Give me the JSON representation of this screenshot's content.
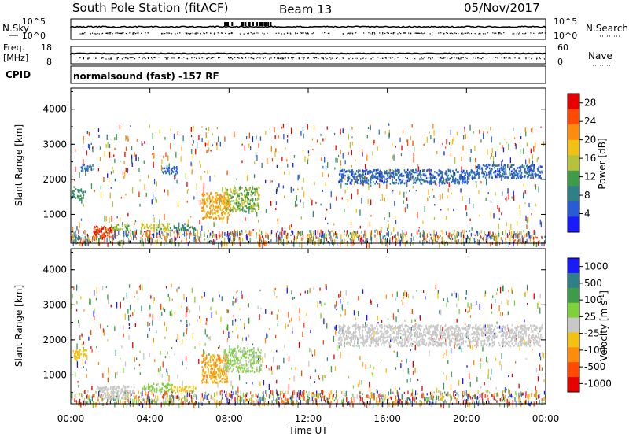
{
  "header": {
    "station": "South Pole Station (fitACF)",
    "beam": "Beam 13",
    "date": "05/Nov/2017"
  },
  "strip_labels": {
    "nsky": "N.Sky",
    "nsearch": "N.Search",
    "freq_top": "Freq.",
    "freq_unit": "[MHz]",
    "nave": "Nave",
    "cpid": "CPID",
    "cpid_value": "normalsound (fast) -157 RF"
  },
  "noise_axis": {
    "left_ticks": [
      "10^5",
      "10^0"
    ],
    "right_ticks": [
      "10^5",
      "10^0"
    ]
  },
  "freq_axis": {
    "left_ticks": [
      "18",
      "8"
    ],
    "right_ticks": [
      "60",
      "0"
    ]
  },
  "chart_data": [
    {
      "type": "heatmap",
      "title": "",
      "xlabel": "Time UT",
      "ylabel": "Slant Range [km]",
      "x_ticks": [
        "00:00",
        "04:00",
        "08:00",
        "12:00",
        "16:00",
        "20:00",
        "00:00"
      ],
      "xlim_hours": [
        0,
        24
      ],
      "ylim": [
        180,
        4600
      ],
      "y_ticks": [
        1000,
        2000,
        3000,
        4000
      ],
      "colorbar": {
        "label": "Power [dB]",
        "ticks": [
          4,
          8,
          12,
          16,
          20,
          24,
          28
        ],
        "range": [
          0,
          30
        ],
        "colors": [
          "#1a1aff",
          "#2a5bd6",
          "#2f7f86",
          "#3f9a4a",
          "#b6c23a",
          "#f4c012",
          "#ff8c0a",
          "#ff4a00",
          "#e80000"
        ]
      },
      "regions": [
        {
          "t0": 0.0,
          "t1": 0.7,
          "r0": 1450,
          "r1": 1750,
          "level": 10
        },
        {
          "t0": 0.5,
          "t1": 1.2,
          "r0": 2250,
          "r1": 2450,
          "level": 8
        },
        {
          "t0": 1.1,
          "t1": 2.1,
          "r0": 380,
          "r1": 700,
          "level": 26
        },
        {
          "t0": 2.0,
          "t1": 3.0,
          "r0": 560,
          "r1": 760,
          "level": 14
        },
        {
          "t0": 3.5,
          "t1": 5.0,
          "r0": 560,
          "r1": 760,
          "level": 16
        },
        {
          "t0": 5.0,
          "t1": 6.3,
          "r0": 560,
          "r1": 720,
          "level": 10
        },
        {
          "t0": 4.6,
          "t1": 5.4,
          "r0": 2150,
          "r1": 2400,
          "level": 6
        },
        {
          "t0": 6.6,
          "t1": 8.0,
          "r0": 900,
          "r1": 1650,
          "level": 20
        },
        {
          "t0": 7.8,
          "t1": 9.5,
          "r0": 1100,
          "r1": 1800,
          "level": 14
        },
        {
          "t0": 13.5,
          "t1": 17.0,
          "r0": 1900,
          "r1": 2300,
          "level": 6
        },
        {
          "t0": 17.0,
          "t1": 20.5,
          "r0": 1900,
          "r1": 2300,
          "level": 6
        },
        {
          "t0": 20.5,
          "t1": 23.8,
          "r0": 2050,
          "r1": 2450,
          "level": 6
        }
      ]
    },
    {
      "type": "heatmap",
      "title": "",
      "xlabel": "Time UT",
      "ylabel": "Slant Range [km]",
      "x_ticks": [
        "00:00",
        "04:00",
        "08:00",
        "12:00",
        "16:00",
        "20:00",
        "00:00"
      ],
      "xlim_hours": [
        0,
        24
      ],
      "ylim": [
        180,
        4600
      ],
      "y_ticks": [
        1000,
        2000,
        3000,
        4000
      ],
      "colorbar": {
        "label": "Velocity [m s^-1]",
        "ticks": [
          "1000",
          "500",
          "100",
          "25",
          "-25",
          "-100",
          "-500",
          "-1000"
        ],
        "range": [
          -1200,
          1200
        ],
        "colors": [
          "#e80000",
          "#ff4a00",
          "#ff8c0a",
          "#f4c012",
          "#c8c8c8",
          "#7fd13b",
          "#3f9a4a",
          "#2f7f86",
          "#1a1aff"
        ]
      },
      "regions": [
        {
          "t0": 0.1,
          "t1": 0.8,
          "r0": 1450,
          "r1": 1750,
          "level": -300
        },
        {
          "t0": 1.3,
          "t1": 3.2,
          "r0": 350,
          "r1": 700,
          "level": 0
        },
        {
          "t0": 3.6,
          "t1": 5.1,
          "r0": 550,
          "r1": 780,
          "level": 200
        },
        {
          "t0": 5.0,
          "t1": 6.3,
          "r0": 560,
          "r1": 700,
          "level": -300
        },
        {
          "t0": 6.6,
          "t1": 7.9,
          "r0": 800,
          "r1": 1600,
          "level": -400
        },
        {
          "t0": 7.7,
          "t1": 9.6,
          "r0": 1100,
          "r1": 1800,
          "level": 150
        },
        {
          "t0": 13.5,
          "t1": 23.8,
          "r0": 1850,
          "r1": 2450,
          "level": 0
        }
      ]
    }
  ]
}
